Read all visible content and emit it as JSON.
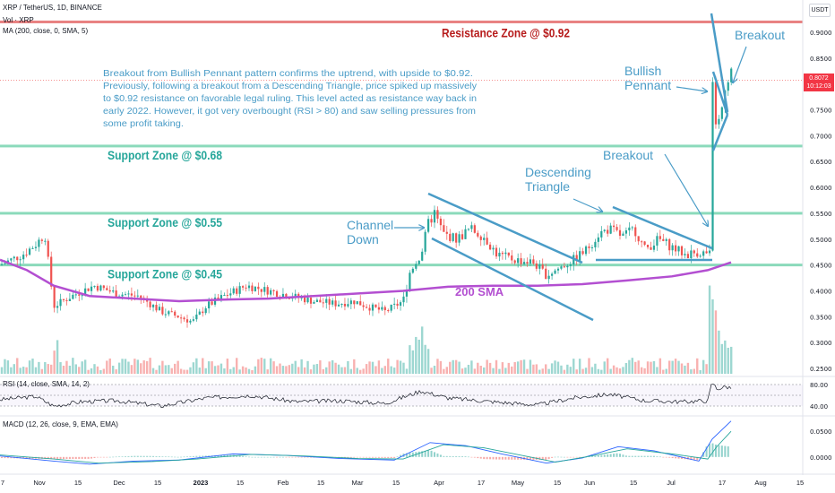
{
  "header": {
    "symbol_line": "XRP / TetherUS, 1D, BINANCE",
    "vol_line": "Vol · XRP",
    "ma_line": "MA (200, close, 0, SMA, 5)",
    "unit_label": "USDT"
  },
  "last_price": {
    "value": "0.8072",
    "countdown": "10:12:03",
    "color": "#f23645"
  },
  "chart_data": {
    "type": "candlestick",
    "symbol": "XRP / TetherUS",
    "interval": "1D",
    "exchange": "BINANCE",
    "y_axis": {
      "ylim": [
        0.23,
        0.93
      ],
      "ticks": [
        "0.9000",
        "0.8500",
        "0.8000",
        "0.7500",
        "0.7000",
        "0.6500",
        "0.6000",
        "0.5500",
        "0.5000",
        "0.4500",
        "0.4000",
        "0.3500",
        "0.3000",
        "0.2500"
      ],
      "tick_values": [
        0.9,
        0.85,
        0.8,
        0.75,
        0.7,
        0.65,
        0.6,
        0.55,
        0.5,
        0.45,
        0.4,
        0.35,
        0.3,
        0.25
      ]
    },
    "x_axis": {
      "labels": [
        "7",
        "Nov",
        "15",
        "Dec",
        "15",
        "2023",
        "15",
        "Feb",
        "15",
        "Mar",
        "15",
        "Apr",
        "17",
        "May",
        "15",
        "Jun",
        "15",
        "Jul",
        "17",
        "Aug",
        "15"
      ],
      "bold": [
        "2023"
      ]
    },
    "price_path": [
      {
        "x": 0,
        "y": 0.45
      },
      {
        "x": 25,
        "y": 0.47
      },
      {
        "x": 40,
        "y": 0.49
      },
      {
        "x": 50,
        "y": 0.51
      },
      {
        "x": 60,
        "y": 0.37
      },
      {
        "x": 80,
        "y": 0.39
      },
      {
        "x": 105,
        "y": 0.41
      },
      {
        "x": 130,
        "y": 0.395
      },
      {
        "x": 155,
        "y": 0.39
      },
      {
        "x": 180,
        "y": 0.36
      },
      {
        "x": 200,
        "y": 0.35
      },
      {
        "x": 215,
        "y": 0.34
      },
      {
        "x": 230,
        "y": 0.37
      },
      {
        "x": 250,
        "y": 0.39
      },
      {
        "x": 275,
        "y": 0.41
      },
      {
        "x": 300,
        "y": 0.4
      },
      {
        "x": 325,
        "y": 0.39
      },
      {
        "x": 350,
        "y": 0.38
      },
      {
        "x": 375,
        "y": 0.375
      },
      {
        "x": 395,
        "y": 0.38
      },
      {
        "x": 410,
        "y": 0.37
      },
      {
        "x": 430,
        "y": 0.36
      },
      {
        "x": 450,
        "y": 0.38
      },
      {
        "x": 458,
        "y": 0.44
      },
      {
        "x": 470,
        "y": 0.47
      },
      {
        "x": 478,
        "y": 0.53
      },
      {
        "x": 485,
        "y": 0.55
      },
      {
        "x": 495,
        "y": 0.51
      },
      {
        "x": 510,
        "y": 0.5
      },
      {
        "x": 525,
        "y": 0.52
      },
      {
        "x": 540,
        "y": 0.505
      },
      {
        "x": 555,
        "y": 0.47
      },
      {
        "x": 575,
        "y": 0.46
      },
      {
        "x": 595,
        "y": 0.455
      },
      {
        "x": 610,
        "y": 0.43
      },
      {
        "x": 625,
        "y": 0.445
      },
      {
        "x": 640,
        "y": 0.46
      },
      {
        "x": 655,
        "y": 0.48
      },
      {
        "x": 668,
        "y": 0.51
      },
      {
        "x": 680,
        "y": 0.52
      },
      {
        "x": 695,
        "y": 0.505
      },
      {
        "x": 708,
        "y": 0.52
      },
      {
        "x": 720,
        "y": 0.48
      },
      {
        "x": 735,
        "y": 0.5
      },
      {
        "x": 750,
        "y": 0.485
      },
      {
        "x": 765,
        "y": 0.47
      },
      {
        "x": 780,
        "y": 0.475
      },
      {
        "x": 793,
        "y": 0.47
      },
      {
        "x": 795,
        "y": 0.8
      },
      {
        "x": 800,
        "y": 0.71
      },
      {
        "x": 805,
        "y": 0.74
      },
      {
        "x": 810,
        "y": 0.78
      },
      {
        "x": 815,
        "y": 0.82
      },
      {
        "x": 820,
        "y": 0.8072
      }
    ],
    "sma200_path": [
      {
        "x": 0,
        "y": 0.46
      },
      {
        "x": 30,
        "y": 0.44
      },
      {
        "x": 60,
        "y": 0.41
      },
      {
        "x": 100,
        "y": 0.39
      },
      {
        "x": 150,
        "y": 0.385
      },
      {
        "x": 200,
        "y": 0.38
      },
      {
        "x": 250,
        "y": 0.383
      },
      {
        "x": 300,
        "y": 0.385
      },
      {
        "x": 350,
        "y": 0.39
      },
      {
        "x": 400,
        "y": 0.395
      },
      {
        "x": 450,
        "y": 0.4
      },
      {
        "x": 500,
        "y": 0.408
      },
      {
        "x": 550,
        "y": 0.41
      },
      {
        "x": 600,
        "y": 0.41
      },
      {
        "x": 650,
        "y": 0.413
      },
      {
        "x": 700,
        "y": 0.42
      },
      {
        "x": 750,
        "y": 0.428
      },
      {
        "x": 790,
        "y": 0.44
      },
      {
        "x": 816,
        "y": 0.455
      }
    ],
    "sma_label": "200 SMA",
    "sma_color": "#b34fd1",
    "zones": [
      {
        "label": "Resistance Zone @ $0.92",
        "value": 0.92,
        "color": "#e57373",
        "text_color": "#b71c1c"
      },
      {
        "label": "Support Zone @ $0.68",
        "value": 0.68,
        "color": "#7ed6b4",
        "text_color": "#26a69a"
      },
      {
        "label": "Support Zone @ $0.55",
        "value": 0.55,
        "color": "#7ed6b4",
        "text_color": "#26a69a"
      },
      {
        "label": "Support Zone @ $0.45",
        "value": 0.45,
        "color": "#7ed6b4",
        "text_color": "#26a69a"
      }
    ],
    "annotations": {
      "commentary": [
        "Breakout from Bullish Pennant pattern confirms the uptrend, with upside to $0.92.",
        "Previously, following a breakout from a Descending Triangle, price spiked up massively",
        "to $0.92 resistance on favorable legal ruling. This level acted as resistance way back in",
        "early 2022. However, it got very overbought (RSI > 80) and saw selling pressures from",
        "some profit taking."
      ],
      "channel_down": [
        "Channel",
        "Down"
      ],
      "descending_triangle": [
        "Descending",
        "Triangle"
      ],
      "breakout_1": "Breakout",
      "bullish_pennant": [
        "Bullish",
        "Pennant"
      ],
      "breakout_2": "Breakout",
      "color": "#4a9cc7"
    },
    "rsi": {
      "label": "RSI (14, close, SMA, 14, 2)",
      "ticks": [
        "80.00",
        "40.00"
      ],
      "tick_values": [
        80,
        40
      ],
      "ylim": [
        25,
        95
      ],
      "path": [
        {
          "x": 0,
          "y": 52
        },
        {
          "x": 40,
          "y": 58
        },
        {
          "x": 60,
          "y": 40
        },
        {
          "x": 90,
          "y": 48
        },
        {
          "x": 130,
          "y": 50
        },
        {
          "x": 180,
          "y": 40
        },
        {
          "x": 230,
          "y": 55
        },
        {
          "x": 280,
          "y": 60
        },
        {
          "x": 330,
          "y": 48
        },
        {
          "x": 380,
          "y": 50
        },
        {
          "x": 430,
          "y": 45
        },
        {
          "x": 470,
          "y": 68
        },
        {
          "x": 500,
          "y": 55
        },
        {
          "x": 550,
          "y": 48
        },
        {
          "x": 600,
          "y": 42
        },
        {
          "x": 640,
          "y": 55
        },
        {
          "x": 680,
          "y": 62
        },
        {
          "x": 720,
          "y": 50
        },
        {
          "x": 760,
          "y": 48
        },
        {
          "x": 790,
          "y": 50
        },
        {
          "x": 795,
          "y": 85
        },
        {
          "x": 800,
          "y": 72
        },
        {
          "x": 810,
          "y": 76
        },
        {
          "x": 816,
          "y": 74
        }
      ]
    },
    "macd": {
      "label": "MACD (12, 26, close, 9, EMA, EMA)",
      "ticks": [
        "0.0500",
        "0.0000"
      ],
      "tick_values": [
        0.05,
        0.0
      ],
      "ylim": [
        -0.03,
        0.08
      ],
      "macd_path": [
        {
          "x": 0,
          "y": 0.002
        },
        {
          "x": 60,
          "y": -0.008
        },
        {
          "x": 100,
          "y": -0.014
        },
        {
          "x": 150,
          "y": -0.008
        },
        {
          "x": 200,
          "y": -0.006
        },
        {
          "x": 260,
          "y": 0.006
        },
        {
          "x": 320,
          "y": 0.003
        },
        {
          "x": 380,
          "y": -0.003
        },
        {
          "x": 440,
          "y": -0.006
        },
        {
          "x": 480,
          "y": 0.028
        },
        {
          "x": 520,
          "y": 0.022
        },
        {
          "x": 560,
          "y": 0.006
        },
        {
          "x": 610,
          "y": -0.012
        },
        {
          "x": 650,
          "y": -0.002
        },
        {
          "x": 690,
          "y": 0.02
        },
        {
          "x": 730,
          "y": 0.012
        },
        {
          "x": 780,
          "y": -0.008
        },
        {
          "x": 795,
          "y": 0.035
        },
        {
          "x": 816,
          "y": 0.07
        }
      ],
      "signal_path": [
        {
          "x": 0,
          "y": 0.004
        },
        {
          "x": 60,
          "y": -0.004
        },
        {
          "x": 110,
          "y": -0.012
        },
        {
          "x": 170,
          "y": -0.009
        },
        {
          "x": 220,
          "y": -0.004
        },
        {
          "x": 280,
          "y": 0.005
        },
        {
          "x": 340,
          "y": 0.002
        },
        {
          "x": 400,
          "y": -0.003
        },
        {
          "x": 450,
          "y": -0.004
        },
        {
          "x": 495,
          "y": 0.024
        },
        {
          "x": 540,
          "y": 0.018
        },
        {
          "x": 580,
          "y": 0.004
        },
        {
          "x": 620,
          "y": -0.01
        },
        {
          "x": 660,
          "y": 0.002
        },
        {
          "x": 700,
          "y": 0.016
        },
        {
          "x": 750,
          "y": 0.006
        },
        {
          "x": 790,
          "y": -0.004
        },
        {
          "x": 800,
          "y": 0.02
        },
        {
          "x": 816,
          "y": 0.05
        }
      ]
    },
    "colors": {
      "up": "#26a69a",
      "down": "#ef5350",
      "pattern": "#4a9cc7",
      "macd": "#2962ff",
      "signal": "#26a69a"
    }
  }
}
